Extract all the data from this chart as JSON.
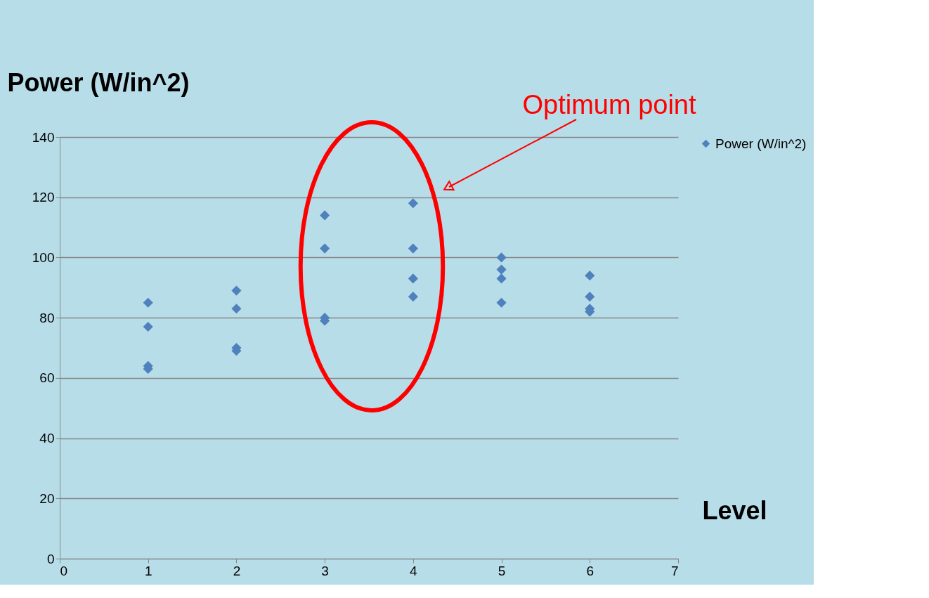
{
  "chart_data": {
    "type": "scatter",
    "ylabel": "Power (W/in^2)",
    "xlabel": "Level",
    "x": [
      1,
      1,
      1,
      1,
      2,
      2,
      2,
      2,
      3,
      3,
      3,
      3,
      4,
      4,
      4,
      4,
      5,
      5,
      5,
      5,
      6,
      6,
      6,
      6
    ],
    "series": [
      {
        "name": "Power (W/in^2)",
        "color": "#4f81bd",
        "values": [
          85,
          77,
          64,
          63,
          89,
          83,
          70,
          69,
          114,
          103,
          80,
          79,
          118,
          103,
          93,
          87,
          100,
          96,
          93,
          85,
          94,
          87,
          83,
          82
        ]
      }
    ],
    "xlim": [
      0,
      7
    ],
    "xticks": [
      0,
      1,
      2,
      3,
      4,
      5,
      6,
      7
    ],
    "ylim": [
      0,
      140
    ],
    "yticks": [
      0,
      20,
      40,
      60,
      80,
      100,
      120,
      140
    ],
    "grid": "y",
    "legend": "right",
    "marker": "diamond",
    "annotations": [
      "Optimum point"
    ]
  }
}
